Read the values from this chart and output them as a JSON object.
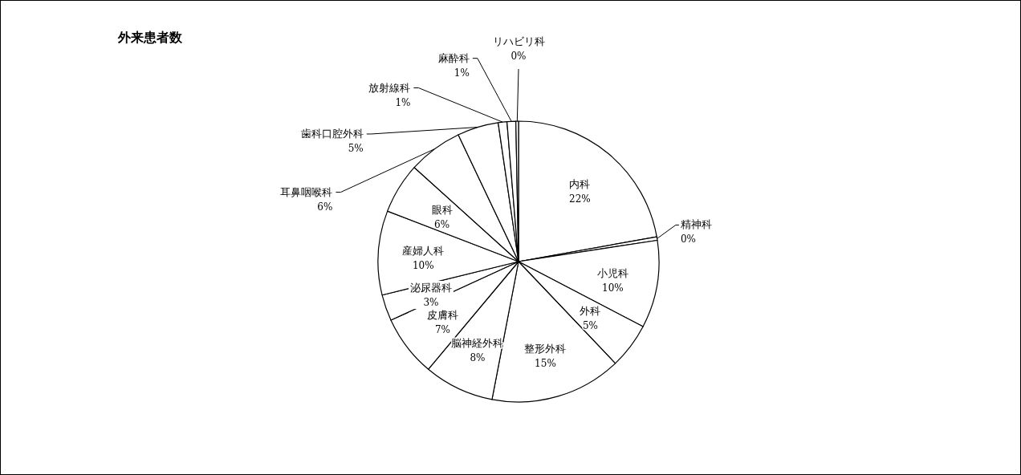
{
  "chart_data": {
    "type": "pie",
    "title": "外来患者数",
    "categories": [
      "内科",
      "精神科",
      "小児科",
      "外科",
      "整形外科",
      "脳神経外科",
      "皮膚科",
      "泌尿器科",
      "産婦人科",
      "眼科",
      "耳鼻咽喉科",
      "歯科口腔外科",
      "放射線科",
      "麻酔科",
      "リハビリ科"
    ],
    "values": [
      22,
      0.4,
      10,
      5.2,
      15,
      8,
      7,
      3,
      9.6,
      5.8,
      6.2,
      4.7,
      1,
      1,
      0.3
    ],
    "value_labels": [
      "22%",
      "0%",
      "10%",
      "5%",
      "15%",
      "8%",
      "7%",
      "3%",
      "10%",
      "6%",
      "6%",
      "5%",
      "1%",
      "1%",
      "0%"
    ],
    "colors": [
      "#ffffff",
      "#ffffff",
      "#ffffff",
      "#ffffff",
      "#ffffff",
      "#ffffff",
      "#ffffff",
      "#ffffff",
      "#ffffff",
      "#ffffff",
      "#ffffff",
      "#ffffff",
      "#ffffff",
      "#ffffff",
      "#ffffff"
    ]
  }
}
